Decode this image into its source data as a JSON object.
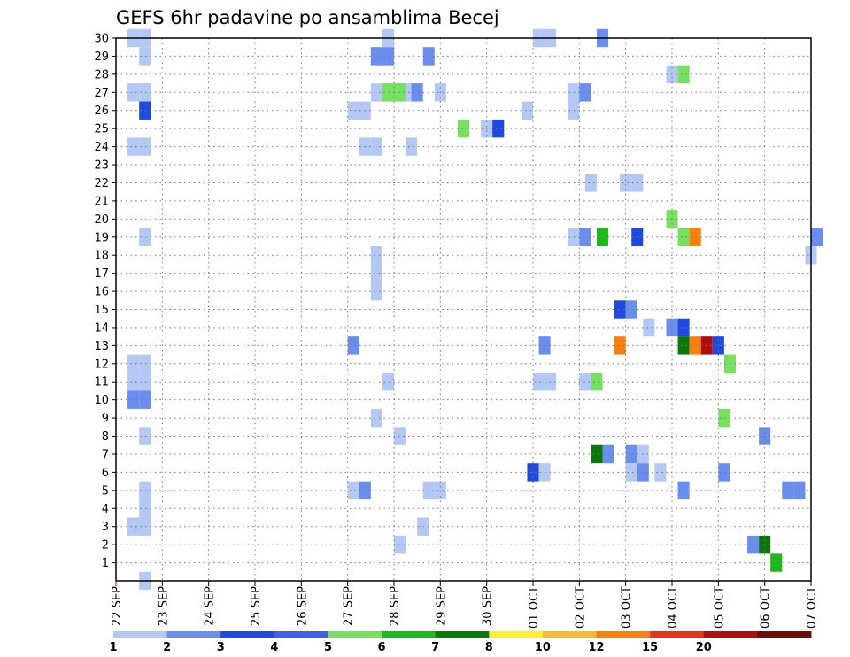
{
  "chart_data": {
    "type": "heatmap",
    "title": "GEFS 6hr padavine po ansamblima Becej",
    "xlabel": "",
    "ylabel": "",
    "x_ticks": [
      "22 SEP",
      "23 SEP",
      "24 SEP",
      "25 SEP",
      "26 SEP",
      "27 SEP",
      "28 SEP",
      "29 SEP",
      "30 SEP",
      "01 OCT",
      "02 OCT",
      "03 OCT",
      "04 OCT",
      "05 OCT",
      "06 OCT",
      "07 OCT"
    ],
    "x_range_days": [
      0,
      15
    ],
    "y_ticks": [
      1,
      2,
      3,
      4,
      5,
      6,
      7,
      8,
      9,
      10,
      11,
      12,
      13,
      14,
      15,
      16,
      17,
      18,
      19,
      20,
      21,
      22,
      23,
      24,
      25,
      26,
      27,
      28,
      29,
      30
    ],
    "y_range": [
      0,
      30
    ],
    "grid": true,
    "colorbar": {
      "labels": [
        "1",
        "2",
        "3",
        "4",
        "5",
        "6",
        "7",
        "8",
        "10",
        "12",
        "15",
        "20"
      ],
      "colors": [
        "#b4c8f5",
        "#6a8ef0",
        "#1e4ae0",
        "#4060e8",
        "#78e060",
        "#1cb81c",
        "#0a780a",
        "#f8f030",
        "#f8b838",
        "#f88010",
        "#e83418",
        "#b00e0e",
        "#6e0a0a"
      ]
    },
    "cells": [
      {
        "day": 0.25,
        "member": 30,
        "level": 0
      },
      {
        "day": 0.5,
        "member": 30,
        "level": 0
      },
      {
        "day": 0.5,
        "member": 29,
        "level": 0
      },
      {
        "day": 0.25,
        "member": 27,
        "level": 0
      },
      {
        "day": 0.5,
        "member": 27,
        "level": 0
      },
      {
        "day": 0.5,
        "member": 26,
        "level": 2
      },
      {
        "day": 0.25,
        "member": 24,
        "level": 0
      },
      {
        "day": 0.5,
        "member": 24,
        "level": 0
      },
      {
        "day": 0.5,
        "member": 19,
        "level": 0
      },
      {
        "day": 0.25,
        "member": 12,
        "level": 0
      },
      {
        "day": 0.5,
        "member": 12,
        "level": 0
      },
      {
        "day": 0.25,
        "member": 11,
        "level": 0
      },
      {
        "day": 0.5,
        "member": 11,
        "level": 0
      },
      {
        "day": 0.25,
        "member": 10,
        "level": 1
      },
      {
        "day": 0.5,
        "member": 10,
        "level": 1
      },
      {
        "day": 0.5,
        "member": 8,
        "level": 0
      },
      {
        "day": 0.5,
        "member": 5,
        "level": 0
      },
      {
        "day": 0.5,
        "member": 4,
        "level": 0
      },
      {
        "day": 0.25,
        "member": 3,
        "level": 0
      },
      {
        "day": 0.5,
        "member": 3,
        "level": 0
      },
      {
        "day": 0.5,
        "member": 0,
        "level": 0
      },
      {
        "day": 5.0,
        "member": 26,
        "level": 0
      },
      {
        "day": 5.25,
        "member": 26,
        "level": 0
      },
      {
        "day": 5.25,
        "member": 24,
        "level": 0
      },
      {
        "day": 5.5,
        "member": 24,
        "level": 0
      },
      {
        "day": 5.0,
        "member": 13,
        "level": 1
      },
      {
        "day": 5.0,
        "member": 5,
        "level": 0
      },
      {
        "day": 5.25,
        "member": 5,
        "level": 1
      },
      {
        "day": 5.75,
        "member": 30,
        "level": 0
      },
      {
        "day": 5.5,
        "member": 29,
        "level": 1
      },
      {
        "day": 5.75,
        "member": 29,
        "level": 1
      },
      {
        "day": 5.5,
        "member": 27,
        "level": 0
      },
      {
        "day": 5.75,
        "member": 27,
        "level": 4
      },
      {
        "day": 6.0,
        "member": 27,
        "level": 4
      },
      {
        "day": 6.25,
        "member": 27,
        "level": 0
      },
      {
        "day": 6.375,
        "member": 27,
        "level": 1
      },
      {
        "day": 5.5,
        "member": 18,
        "level": 0
      },
      {
        "day": 5.5,
        "member": 17,
        "level": 0
      },
      {
        "day": 5.5,
        "member": 16,
        "level": 0
      },
      {
        "day": 5.5,
        "member": 9,
        "level": 0
      },
      {
        "day": 5.75,
        "member": 11,
        "level": 0
      },
      {
        "day": 6.0,
        "member": 8,
        "level": 0
      },
      {
        "day": 6.0,
        "member": 2,
        "level": 0
      },
      {
        "day": 6.25,
        "member": 24,
        "level": 0
      },
      {
        "day": 6.625,
        "member": 29,
        "level": 1
      },
      {
        "day": 6.875,
        "member": 27,
        "level": 0
      },
      {
        "day": 6.5,
        "member": 3,
        "level": 0
      },
      {
        "day": 6.625,
        "member": 5,
        "level": 0
      },
      {
        "day": 6.875,
        "member": 5,
        "level": 0
      },
      {
        "day": 7.375,
        "member": 25,
        "level": 4
      },
      {
        "day": 7.875,
        "member": 25,
        "level": 0
      },
      {
        "day": 8.125,
        "member": 25,
        "level": 2
      },
      {
        "day": 8.75,
        "member": 26,
        "level": 0
      },
      {
        "day": 9.0,
        "member": 30,
        "level": 0
      },
      {
        "day": 9.25,
        "member": 30,
        "level": 0
      },
      {
        "day": 9.75,
        "member": 27,
        "level": 0
      },
      {
        "day": 10.0,
        "member": 27,
        "level": 1
      },
      {
        "day": 9.75,
        "member": 26,
        "level": 0
      },
      {
        "day": 9.75,
        "member": 19,
        "level": 0
      },
      {
        "day": 10.0,
        "member": 19,
        "level": 1
      },
      {
        "day": 10.375,
        "member": 19,
        "level": 5
      },
      {
        "day": 10.375,
        "member": 30,
        "level": 1
      },
      {
        "day": 10.125,
        "member": 22,
        "level": 0
      },
      {
        "day": 9.125,
        "member": 13,
        "level": 1
      },
      {
        "day": 9.0,
        "member": 11,
        "level": 0
      },
      {
        "day": 9.25,
        "member": 11,
        "level": 0
      },
      {
        "day": 10.0,
        "member": 11,
        "level": 0
      },
      {
        "day": 10.25,
        "member": 11,
        "level": 4
      },
      {
        "day": 8.875,
        "member": 6,
        "level": 2
      },
      {
        "day": 9.125,
        "member": 6,
        "level": 0
      },
      {
        "day": 10.25,
        "member": 7,
        "level": 6
      },
      {
        "day": 10.5,
        "member": 7,
        "level": 1
      },
      {
        "day": 10.875,
        "member": 22,
        "level": 0
      },
      {
        "day": 11.125,
        "member": 22,
        "level": 0
      },
      {
        "day": 11.125,
        "member": 19,
        "level": 2
      },
      {
        "day": 10.75,
        "member": 15,
        "level": 2
      },
      {
        "day": 11.0,
        "member": 15,
        "level": 1
      },
      {
        "day": 11.375,
        "member": 14,
        "level": 0
      },
      {
        "day": 10.75,
        "member": 13,
        "level": 9
      },
      {
        "day": 11.0,
        "member": 7,
        "level": 1
      },
      {
        "day": 11.25,
        "member": 7,
        "level": 0
      },
      {
        "day": 11.0,
        "member": 6,
        "level": 0
      },
      {
        "day": 11.25,
        "member": 6,
        "level": 1
      },
      {
        "day": 11.625,
        "member": 6,
        "level": 0
      },
      {
        "day": 11.875,
        "member": 28,
        "level": 0
      },
      {
        "day": 12.125,
        "member": 28,
        "level": 4
      },
      {
        "day": 11.875,
        "member": 20,
        "level": 4
      },
      {
        "day": 12.125,
        "member": 19,
        "level": 4
      },
      {
        "day": 12.375,
        "member": 19,
        "level": 9
      },
      {
        "day": 11.875,
        "member": 14,
        "level": 1
      },
      {
        "day": 12.125,
        "member": 14,
        "level": 2
      },
      {
        "day": 12.125,
        "member": 13,
        "level": 6
      },
      {
        "day": 12.375,
        "member": 13,
        "level": 9
      },
      {
        "day": 12.625,
        "member": 13,
        "level": 11
      },
      {
        "day": 12.875,
        "member": 13,
        "level": 2
      },
      {
        "day": 12.125,
        "member": 5,
        "level": 1
      },
      {
        "day": 13.125,
        "member": 12,
        "level": 4
      },
      {
        "day": 13.0,
        "member": 9,
        "level": 4
      },
      {
        "day": 13.0,
        "member": 6,
        "level": 1
      },
      {
        "day": 13.875,
        "member": 8,
        "level": 1
      },
      {
        "day": 13.625,
        "member": 2,
        "level": 1
      },
      {
        "day": 13.875,
        "member": 2,
        "level": 6
      },
      {
        "day": 14.125,
        "member": 1,
        "level": 5
      },
      {
        "day": 14.375,
        "member": 5,
        "level": 1
      },
      {
        "day": 14.625,
        "member": 5,
        "level": 1
      },
      {
        "day": 14.875,
        "member": 18,
        "level": 0
      },
      {
        "day": 15.0,
        "member": 19,
        "level": 1
      }
    ]
  }
}
